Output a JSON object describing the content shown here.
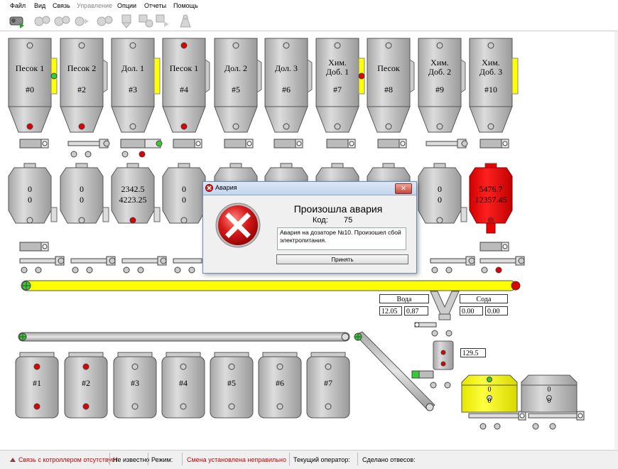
{
  "menu": {
    "file": "Файл",
    "view": "Вид",
    "link": "Связь",
    "control": "Управление",
    "options": "Опции",
    "reports": "Отчеты",
    "help": "Помощь"
  },
  "colors": {
    "silo": "#cbcbcb",
    "alarm": "#ff0000",
    "yellow": "#ffff00",
    "led_red": "#e00000",
    "led_green": "#33cc33",
    "led_gray": "#cccccc"
  },
  "silos": [
    {
      "name": "Песок 1",
      "num": "#0"
    },
    {
      "name": "Песок 2",
      "num": "#2"
    },
    {
      "name": "Дол. 1",
      "num": "#3"
    },
    {
      "name": "Песок 1",
      "num": "#4"
    },
    {
      "name": "Дол. 2",
      "num": "#5"
    },
    {
      "name": "Дол. 3",
      "num": "#6"
    },
    {
      "name": "Хим. Доб. 1",
      "num": "#7"
    },
    {
      "name": "Песок",
      "num": "#8"
    },
    {
      "name": "Хим. Доб. 2",
      "num": "#9"
    },
    {
      "name": "Хим. Доб. 3",
      "num": "#10"
    }
  ],
  "scales": [
    {
      "v1": "0",
      "v2": "0"
    },
    {
      "v1": "0",
      "v2": "0"
    },
    {
      "v1": "2342.5",
      "v2": "4223.25"
    },
    {
      "v1": "0",
      "v2": "0"
    },
    {
      "v1": "",
      "v2": ""
    },
    {
      "v1": "",
      "v2": ""
    },
    {
      "v1": "",
      "v2": ""
    },
    {
      "v1": "",
      "v2": ""
    },
    {
      "v1": "0",
      "v2": "0"
    },
    {
      "v1": "5476.7",
      "v2": "12357.45"
    }
  ],
  "mixers": [
    "#1",
    "#2",
    "#3",
    "#4",
    "#5",
    "#6",
    "#7"
  ],
  "water": {
    "label": "Вода",
    "v1": "12.05",
    "v2": "0.87"
  },
  "soda": {
    "label": "Сода",
    "v1": "0.00",
    "v2": "0.00"
  },
  "small_scale": "129.5",
  "tanks": [
    {
      "v1": "0",
      "v2": "0"
    },
    {
      "v1": "0",
      "v2": "0"
    }
  ],
  "dialog": {
    "title": "Авария",
    "heading": "Произошла авария",
    "code_label": "Код:",
    "code": "75",
    "message": "Авария на дозаторе №10. Произошел сбой электропитания.",
    "button": "Принять",
    "close": "✕"
  },
  "status": {
    "link": "Связь с котроллером отсутствует",
    "unknown": "Не известно",
    "mode": "Режим:",
    "shift": "Смена установлена неправильно",
    "operator": "Текущий оператор:",
    "done": "Сделано отвесов:"
  }
}
